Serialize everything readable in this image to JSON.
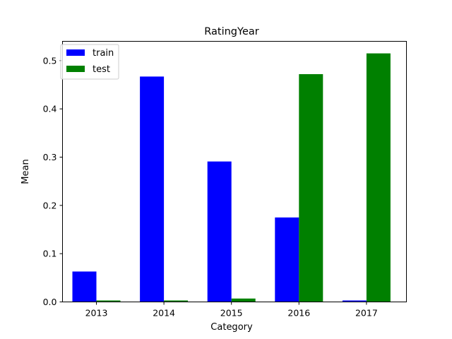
{
  "chart_data": {
    "type": "bar",
    "title": "RatingYear",
    "xlabel": "Category",
    "ylabel": "Mean",
    "categories": [
      "2013",
      "2014",
      "2015",
      "2016",
      "2017"
    ],
    "series": [
      {
        "name": "train",
        "color": "#0000ff",
        "values": [
          0.063,
          0.467,
          0.291,
          0.175,
          0.003
        ]
      },
      {
        "name": "test",
        "color": "#008000",
        "values": [
          0.003,
          0.003,
          0.007,
          0.472,
          0.515
        ]
      }
    ],
    "ylim": [
      0,
      0.54
    ],
    "yticks": [
      0.0,
      0.1,
      0.2,
      0.3,
      0.4,
      0.5
    ],
    "ytick_labels": [
      "0.0",
      "0.1",
      "0.2",
      "0.3",
      "0.4",
      "0.5"
    ],
    "grid": false,
    "legend_position": "top-left"
  }
}
